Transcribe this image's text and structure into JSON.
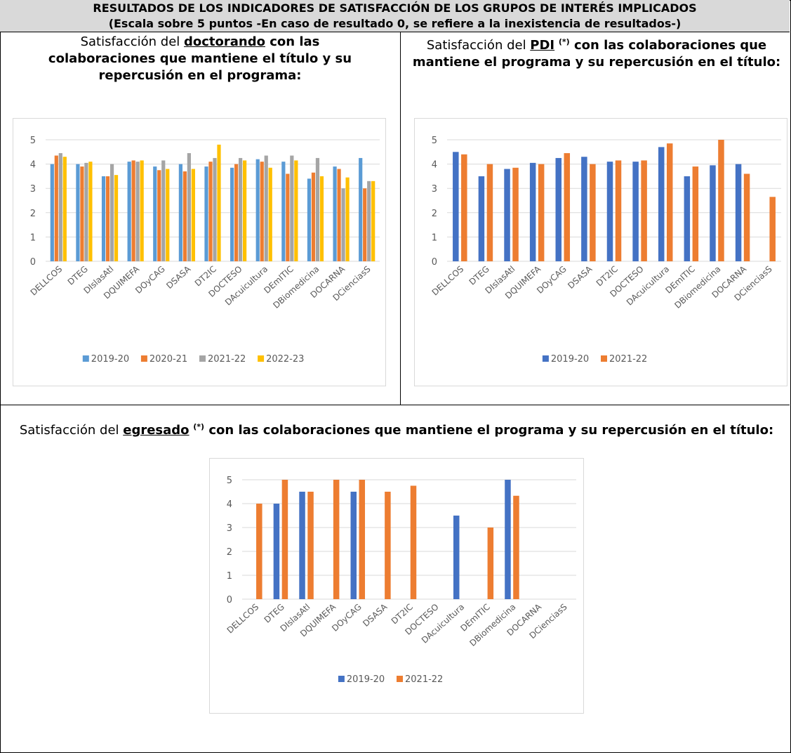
{
  "header": {
    "line1": "RESULTADOS DE LOS INDICADORES DE SATISFACCIÓN DE LOS GRUPOS DE INTERÉS IMPLICADOS",
    "line2": "(Escala sobre 5 puntos -En caso de resultado 0, se refiere a la inexistencia de resultados-)"
  },
  "panels": {
    "doctorando": {
      "pre": "Satisfacción del ",
      "key": "doctorando",
      "post": " con las colaboraciones que mantiene el título y su repercusión en el programa:"
    },
    "pdi": {
      "pre": "Satisfacción del ",
      "key": "PDI",
      "mark": "(*)",
      "post": " con las colaboraciones que mantiene el programa y su repercusión en el título:"
    },
    "egresado": {
      "pre": "Satisfacción del ",
      "key": "egresado",
      "mark": "(*)",
      "post": " con las colaboraciones que mantiene el programa y su repercusión en el título:"
    }
  },
  "chart_data": [
    {
      "type": "bar",
      "categories": [
        "DELLCOS",
        "DTEG",
        "DIslasAtl",
        "DQUIMEFA",
        "DOyCAG",
        "DSASA",
        "DT2IC",
        "DOCTESO",
        "DAcuicultura",
        "DEmITIC",
        "DBiomedicina",
        "DOCARNA",
        "DCienciasS"
      ],
      "series": [
        {
          "name": "2019-20",
          "color": "#5b9bd5",
          "values": [
            4.0,
            4.0,
            3.5,
            4.1,
            3.9,
            4.0,
            3.9,
            3.85,
            4.2,
            4.1,
            3.4,
            3.9,
            4.25
          ]
        },
        {
          "name": "2020-21",
          "color": "#ed7d31",
          "values": [
            4.35,
            3.9,
            3.5,
            4.15,
            3.75,
            3.7,
            4.1,
            4.0,
            4.1,
            3.6,
            3.65,
            3.8,
            3.0
          ]
        },
        {
          "name": "2021-22",
          "color": "#a5a5a5",
          "values": [
            4.45,
            4.05,
            4.0,
            4.1,
            4.15,
            4.45,
            4.25,
            4.25,
            4.35,
            4.35,
            4.25,
            3.0,
            3.3
          ]
        },
        {
          "name": "2022-23",
          "color": "#ffc000",
          "values": [
            4.3,
            4.1,
            3.55,
            4.15,
            3.8,
            3.8,
            4.8,
            4.15,
            3.85,
            4.15,
            3.5,
            3.45,
            3.3
          ]
        }
      ],
      "yticks": [
        "0",
        "1",
        "2",
        "3",
        "4",
        "5"
      ],
      "ylim": [
        0,
        5
      ],
      "legend": "bottom"
    },
    {
      "type": "bar",
      "categories": [
        "DELLCOS",
        "DTEG",
        "DIslasAtl",
        "DQUIMEFA",
        "DOyCAG",
        "DSASA",
        "DT2IC",
        "DOCTESO",
        "DAcuicultura",
        "DEmITIC",
        "DBiomedicina",
        "DOCARNA",
        "DCienciasS"
      ],
      "series": [
        {
          "name": "2019-20",
          "color": "#4472c4",
          "values": [
            4.5,
            3.5,
            3.8,
            4.05,
            4.25,
            4.3,
            4.1,
            4.1,
            4.7,
            3.5,
            3.95,
            4.0,
            0
          ]
        },
        {
          "name": "2021-22",
          "color": "#ed7d31",
          "values": [
            4.4,
            4.0,
            3.85,
            4.0,
            4.45,
            4.0,
            4.15,
            4.15,
            4.85,
            3.9,
            5.0,
            3.6,
            2.65
          ]
        }
      ],
      "yticks": [
        "0",
        "1",
        "2",
        "3",
        "4",
        "5"
      ],
      "ylim": [
        0,
        5
      ],
      "legend": "bottom"
    },
    {
      "type": "bar",
      "categories": [
        "DELLCOS",
        "DTEG",
        "DIslasAtl",
        "DQUIMEFA",
        "DOyCAG",
        "DSASA",
        "DT2IC",
        "DOCTESO",
        "DAcuicultura",
        "DEmITIC",
        "DBiomedicina",
        "DOCARNA",
        "DCienciasS"
      ],
      "series": [
        {
          "name": "2019-20",
          "color": "#4472c4",
          "values": [
            0,
            4.0,
            4.5,
            0,
            4.5,
            0,
            0,
            0,
            3.5,
            0,
            5.0,
            0,
            0
          ]
        },
        {
          "name": "2021-22",
          "color": "#ed7d31",
          "values": [
            4.0,
            5.0,
            4.5,
            5.0,
            5.0,
            4.5,
            4.75,
            0,
            0,
            3.0,
            4.33,
            0,
            0
          ]
        }
      ],
      "yticks": [
        "0",
        "1",
        "2",
        "3",
        "4",
        "5"
      ],
      "ylim": [
        0,
        5
      ],
      "legend": "bottom"
    }
  ]
}
